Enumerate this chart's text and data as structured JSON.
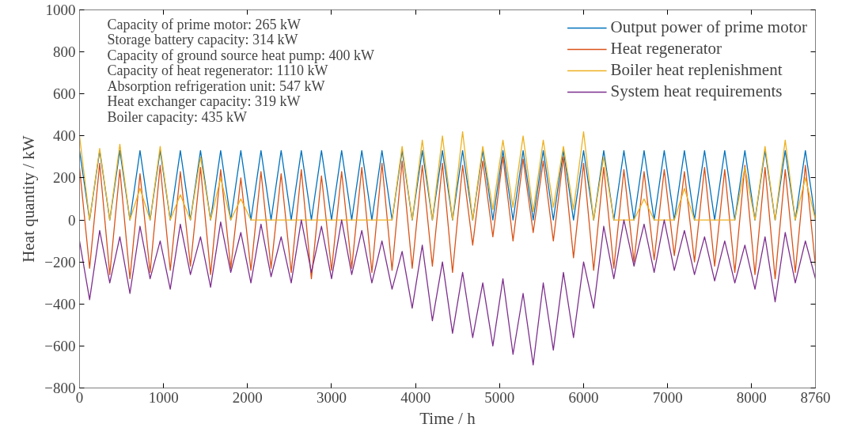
{
  "chart_data": {
    "type": "line",
    "xlabel": "Time / h",
    "ylabel": "Heat quantity / kW",
    "annotations": [
      "Capacity of prime motor: 265 kW",
      "Storage battery capacity: 314 kW",
      "Capacity of ground source heat pump: 400 kW",
      "Capacity of heat regenerator: 1110 kW",
      "Absorption refrigeration unit: 547 kW",
      "Heat exchanger capacity: 319 kW",
      "Boiler capacity: 435 kW"
    ],
    "x": [
      0,
      120,
      240,
      360,
      480,
      600,
      720,
      840,
      960,
      1080,
      1200,
      1320,
      1440,
      1560,
      1680,
      1800,
      1920,
      2040,
      2160,
      2280,
      2400,
      2520,
      2640,
      2760,
      2880,
      3000,
      3120,
      3240,
      3360,
      3480,
      3600,
      3720,
      3840,
      3960,
      4080,
      4200,
      4320,
      4440,
      4560,
      4680,
      4800,
      4920,
      5040,
      5160,
      5280,
      5400,
      5520,
      5640,
      5760,
      5880,
      6000,
      6120,
      6240,
      6360,
      6480,
      6600,
      6720,
      6840,
      6960,
      7080,
      7200,
      7320,
      7440,
      7560,
      7680,
      7800,
      7920,
      8040,
      8160,
      8280,
      8400,
      8520,
      8640,
      8760
    ],
    "series": [
      {
        "name": "Output power of prime motor",
        "color": "#0072bd",
        "values": [
          330,
          0,
          330,
          0,
          330,
          0,
          330,
          0,
          330,
          0,
          330,
          0,
          330,
          0,
          330,
          0,
          330,
          0,
          330,
          0,
          330,
          0,
          330,
          0,
          330,
          0,
          330,
          0,
          330,
          0,
          330,
          0,
          330,
          0,
          330,
          0,
          330,
          0,
          330,
          0,
          330,
          0,
          330,
          0,
          330,
          0,
          330,
          0,
          330,
          0,
          330,
          0,
          330,
          0,
          330,
          0,
          330,
          0,
          330,
          0,
          330,
          0,
          330,
          0,
          330,
          0,
          330,
          0,
          330,
          0,
          330,
          0,
          330,
          0
        ]
      },
      {
        "name": "Heat regenerator",
        "color": "#d95319",
        "values": [
          250,
          -230,
          270,
          -260,
          240,
          -280,
          220,
          -250,
          260,
          -240,
          230,
          -220,
          250,
          -260,
          240,
          -230,
          200,
          -240,
          230,
          -230,
          220,
          -250,
          240,
          -280,
          210,
          -240,
          230,
          -230,
          250,
          -250,
          270,
          -240,
          280,
          -230,
          260,
          -220,
          270,
          -250,
          260,
          -120,
          280,
          -80,
          300,
          -100,
          290,
          -60,
          280,
          -100,
          300,
          -180,
          270,
          -240,
          250,
          -230,
          240,
          -200,
          230,
          -190,
          240,
          -170,
          230,
          -200,
          250,
          -220,
          240,
          -250,
          260,
          -260,
          250,
          -280,
          240,
          -250,
          260,
          -220
        ]
      },
      {
        "name": "Boiler heat replenishment",
        "color": "#edb120",
        "values": [
          400,
          0,
          340,
          0,
          360,
          0,
          150,
          0,
          350,
          0,
          120,
          0,
          300,
          0,
          200,
          0,
          100,
          0,
          0,
          0,
          0,
          0,
          0,
          0,
          0,
          0,
          0,
          0,
          0,
          0,
          0,
          0,
          350,
          0,
          380,
          0,
          400,
          0,
          420,
          0,
          350,
          50,
          380,
          60,
          400,
          40,
          380,
          60,
          350,
          50,
          420,
          0,
          300,
          0,
          0,
          0,
          100,
          0,
          0,
          0,
          150,
          0,
          0,
          0,
          0,
          0,
          250,
          0,
          350,
          0,
          380,
          0,
          200,
          0
        ]
      },
      {
        "name": "System heat requirements",
        "color": "#7e2f8e",
        "values": [
          -100,
          -380,
          -50,
          -300,
          -80,
          -350,
          -30,
          -280,
          -100,
          -330,
          -20,
          -260,
          -80,
          -320,
          -10,
          -250,
          -60,
          -300,
          -20,
          -270,
          -80,
          -300,
          0,
          -250,
          -30,
          -280,
          0,
          -260,
          -50,
          -300,
          -100,
          -330,
          -150,
          -420,
          -120,
          -480,
          -200,
          -540,
          -250,
          -560,
          -300,
          -600,
          -280,
          -640,
          -350,
          -690,
          -300,
          -620,
          -250,
          -560,
          -200,
          -420,
          -30,
          -280,
          0,
          -220,
          -20,
          -250,
          0,
          -240,
          -50,
          -260,
          -80,
          -290,
          -100,
          -300,
          -120,
          -330,
          -80,
          -390,
          -60,
          -300,
          -100,
          -280
        ]
      }
    ],
    "xlim": [
      0,
      8760
    ],
    "ylim": [
      -800,
      1000
    ],
    "xticks": [
      0,
      1000,
      2000,
      3000,
      4000,
      5000,
      6000,
      7000,
      8000,
      8760
    ],
    "yticks": [
      -800,
      -600,
      -400,
      -200,
      0,
      200,
      400,
      600,
      800,
      1000
    ],
    "legend": "top right",
    "grid": false
  }
}
